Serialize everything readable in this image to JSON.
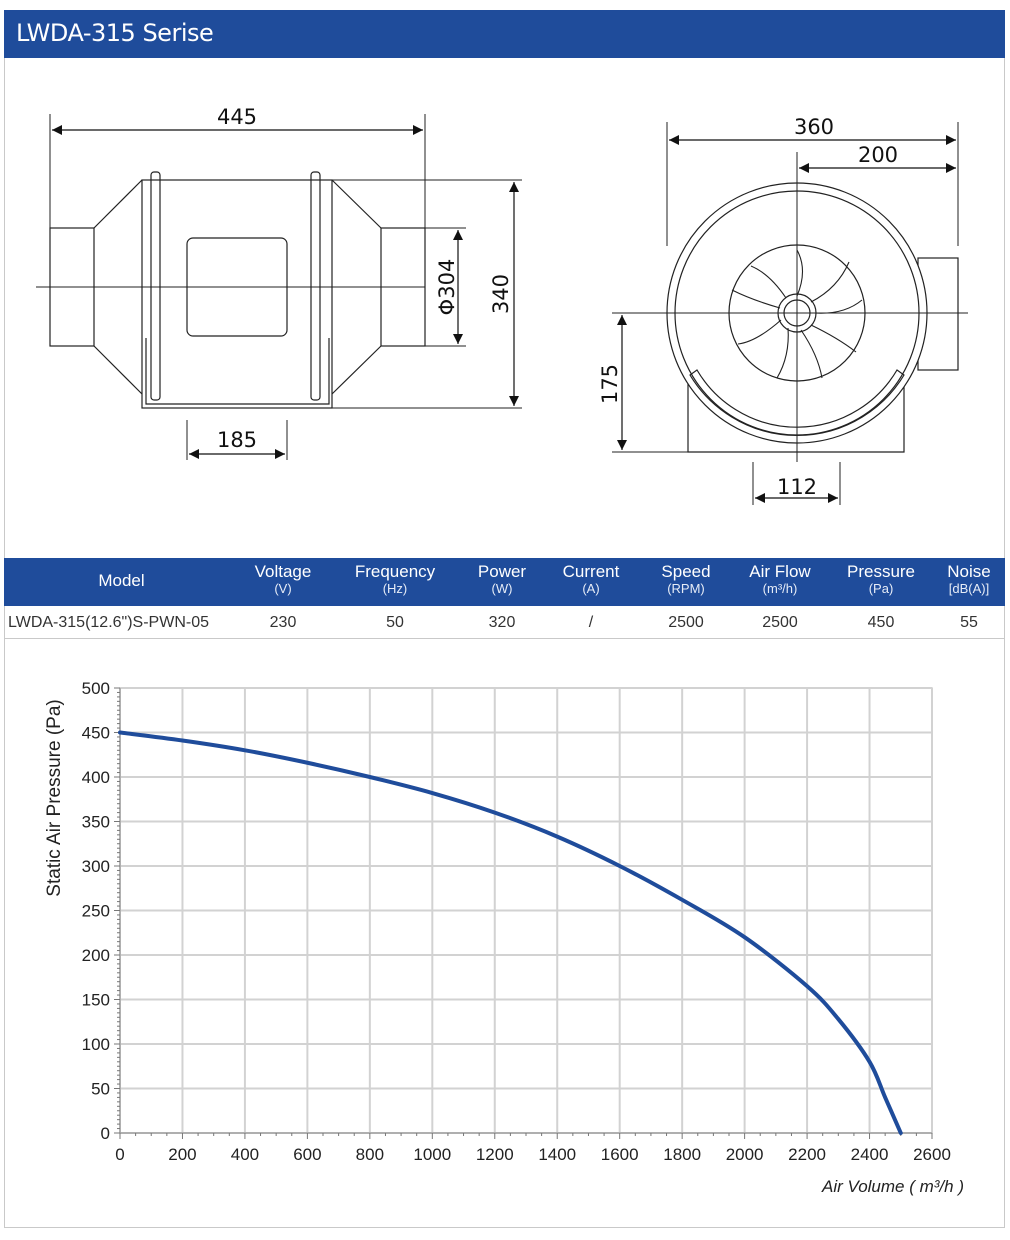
{
  "header": {
    "title": "LWDA-315 Serise"
  },
  "drawing": {
    "dimensions": {
      "length": "445",
      "diameter": "Φ304",
      "height": "340",
      "base_width": "185",
      "outer_width": "360",
      "half_width": "200",
      "center_height": "175",
      "foot_width": "112"
    }
  },
  "spec_table": {
    "columns": [
      {
        "label": "Model",
        "unit": ""
      },
      {
        "label": "Voltage",
        "unit": "(V)"
      },
      {
        "label": "Frequency",
        "unit": "(Hz)"
      },
      {
        "label": "Power",
        "unit": "(W)"
      },
      {
        "label": "Current",
        "unit": "(A)"
      },
      {
        "label": "Speed",
        "unit": "(RPM)"
      },
      {
        "label": "Air Flow",
        "unit": "(m³/h)"
      },
      {
        "label": "Pressure",
        "unit": "(Pa)"
      },
      {
        "label": "Noise",
        "unit": "[dB(A)]"
      }
    ],
    "row": [
      "LWDA-315(12.6\")S-PWN-05",
      "230",
      "50",
      "320",
      "/",
      "2500",
      "2500",
      "450",
      "55"
    ]
  },
  "chart_data": {
    "type": "line",
    "title": "",
    "xlabel": "Air Volume ( m³/h )",
    "ylabel": "Static Air Pressure  (Pa)",
    "xlim": [
      0,
      2600
    ],
    "ylim": [
      0,
      500
    ],
    "xticks": [
      "0",
      "200",
      "400",
      "600",
      "800",
      "1000",
      "1200",
      "1400",
      "1600",
      "1800",
      "2000",
      "2200",
      "2400",
      "2600"
    ],
    "yticks": [
      "0",
      "50",
      "100",
      "150",
      "200",
      "250",
      "300",
      "350",
      "400",
      "450",
      "500"
    ],
    "grid": true,
    "color": "#1f4c9b",
    "x": [
      0,
      200,
      400,
      600,
      800,
      1000,
      1200,
      1400,
      1600,
      1800,
      2000,
      2200,
      2300,
      2400,
      2450,
      2500
    ],
    "y": [
      450,
      441,
      430,
      416,
      400,
      382,
      360,
      333,
      300,
      262,
      220,
      165,
      128,
      80,
      40,
      0
    ]
  }
}
